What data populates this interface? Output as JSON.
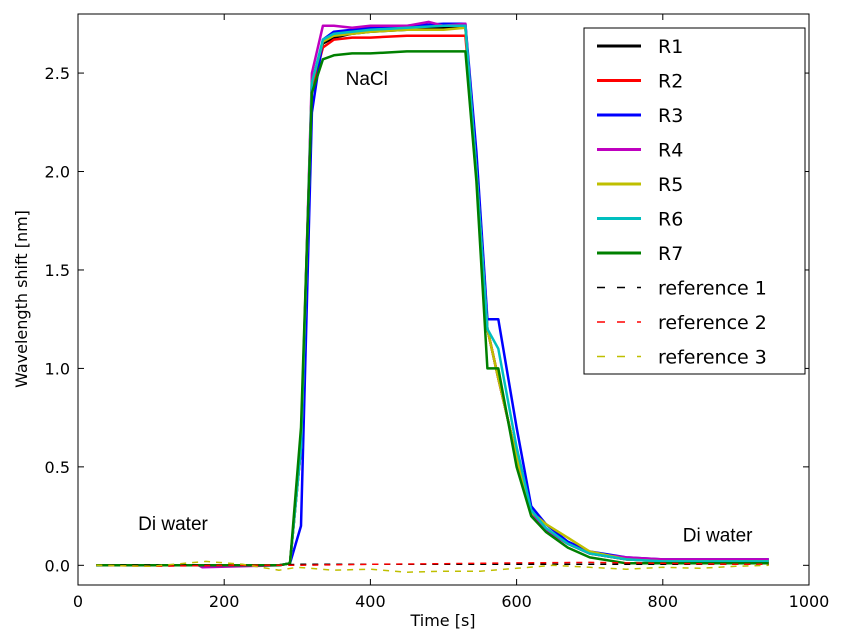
{
  "chart_data": {
    "type": "line",
    "xlabel": "Time [s]",
    "ylabel": "Wavelength shift [nm]",
    "xlim": [
      0,
      1000
    ],
    "ylim": [
      -0.1,
      2.8
    ],
    "xticks": [
      0,
      200,
      400,
      600,
      800,
      1000
    ],
    "xtick_labels": [
      "0",
      "200",
      "400",
      "600",
      "800",
      "1000"
    ],
    "yticks": [
      0.0,
      0.5,
      1.0,
      1.5,
      2.0,
      2.5
    ],
    "ytick_labels": [
      "0.0",
      "0.5",
      "1.0",
      "1.5",
      "2.0",
      "2.5"
    ],
    "grid": false,
    "legend_position": "top-right",
    "annotations": [
      {
        "text": "NaCl",
        "x": 395,
        "y": 2.44
      },
      {
        "text": "Di water",
        "x": 130,
        "y": 0.18
      },
      {
        "text": "Di water",
        "x": 875,
        "y": 0.12
      }
    ],
    "series": [
      {
        "name": "R1",
        "color": "#000000",
        "style": "solid",
        "x": [
          25,
          275,
          290,
          305,
          320,
          335,
          350,
          375,
          400,
          450,
          500,
          530,
          545,
          560,
          575,
          600,
          620,
          640,
          670,
          700,
          750,
          800,
          850,
          900,
          945
        ],
        "y": [
          0,
          0,
          0.01,
          0.6,
          2.45,
          2.65,
          2.68,
          2.7,
          2.71,
          2.72,
          2.73,
          2.73,
          2.0,
          1.2,
          0.95,
          0.55,
          0.27,
          0.18,
          0.11,
          0.06,
          0.03,
          0.02,
          0.02,
          0.02,
          0.02
        ]
      },
      {
        "name": "R2",
        "color": "#ff0000",
        "style": "solid",
        "x": [
          25,
          275,
          290,
          305,
          320,
          335,
          350,
          375,
          400,
          450,
          500,
          530,
          545,
          560,
          575,
          600,
          620,
          640,
          670,
          700,
          750,
          800,
          850,
          900,
          945
        ],
        "y": [
          0,
          0,
          0.01,
          0.6,
          2.42,
          2.63,
          2.67,
          2.68,
          2.68,
          2.69,
          2.69,
          2.69,
          2.0,
          1.2,
          0.95,
          0.55,
          0.27,
          0.18,
          0.11,
          0.06,
          0.03,
          0.02,
          0.02,
          0.02,
          0.02
        ]
      },
      {
        "name": "R3",
        "color": "#0000ff",
        "style": "solid",
        "x": [
          25,
          275,
          290,
          305,
          320,
          335,
          350,
          375,
          400,
          450,
          500,
          530,
          545,
          560,
          575,
          600,
          620,
          640,
          670,
          700,
          750,
          800,
          850,
          900,
          945
        ],
        "y": [
          0,
          0,
          0.01,
          0.2,
          2.3,
          2.67,
          2.71,
          2.72,
          2.73,
          2.74,
          2.75,
          2.75,
          2.1,
          1.25,
          1.25,
          0.7,
          0.3,
          0.21,
          0.12,
          0.07,
          0.04,
          0.03,
          0.03,
          0.03,
          0.03
        ]
      },
      {
        "name": "R4",
        "color": "#bf00bf",
        "style": "solid",
        "x": [
          25,
          165,
          170,
          275,
          290,
          305,
          320,
          335,
          350,
          375,
          400,
          450,
          480,
          500,
          530,
          545,
          560,
          575,
          600,
          620,
          640,
          670,
          700,
          750,
          800,
          850,
          900,
          945
        ],
        "y": [
          0,
          0,
          -0.01,
          0,
          0.01,
          0.6,
          2.5,
          2.74,
          2.74,
          2.73,
          2.74,
          2.74,
          2.76,
          2.74,
          2.75,
          2.0,
          1.2,
          0.95,
          0.55,
          0.27,
          0.18,
          0.11,
          0.06,
          0.04,
          0.03,
          0.03,
          0.03,
          0.03
        ]
      },
      {
        "name": "R5",
        "color": "#bfbf00",
        "style": "solid",
        "x": [
          25,
          275,
          290,
          305,
          320,
          335,
          350,
          375,
          400,
          450,
          500,
          530,
          545,
          560,
          575,
          600,
          620,
          640,
          670,
          700,
          750,
          800,
          850,
          900,
          945
        ],
        "y": [
          0,
          0,
          0.01,
          0.6,
          2.45,
          2.66,
          2.69,
          2.7,
          2.71,
          2.72,
          2.72,
          2.73,
          2.0,
          1.2,
          0.95,
          0.55,
          0.27,
          0.21,
          0.14,
          0.07,
          0.03,
          0.02,
          0.02,
          0.02,
          0.02
        ]
      },
      {
        "name": "R6",
        "color": "#00bfbf",
        "style": "solid",
        "x": [
          25,
          275,
          290,
          305,
          320,
          335,
          350,
          375,
          400,
          450,
          500,
          530,
          545,
          560,
          575,
          600,
          620,
          640,
          670,
          700,
          750,
          800,
          850,
          900,
          945
        ],
        "y": [
          0,
          0,
          0.01,
          0.6,
          2.45,
          2.67,
          2.7,
          2.71,
          2.72,
          2.73,
          2.74,
          2.74,
          2.0,
          1.2,
          1.1,
          0.6,
          0.28,
          0.19,
          0.11,
          0.06,
          0.03,
          0.02,
          0.02,
          0.02,
          0.02
        ]
      },
      {
        "name": "R7",
        "color": "#008000",
        "style": "solid",
        "x": [
          25,
          275,
          290,
          305,
          320,
          335,
          350,
          375,
          400,
          450,
          500,
          530,
          545,
          560,
          575,
          600,
          620,
          640,
          670,
          700,
          750,
          800,
          850,
          900,
          945
        ],
        "y": [
          0,
          0,
          0.01,
          0.7,
          2.4,
          2.57,
          2.59,
          2.6,
          2.6,
          2.61,
          2.61,
          2.61,
          1.95,
          1.0,
          1.0,
          0.5,
          0.25,
          0.17,
          0.09,
          0.04,
          0.01,
          0.01,
          0.01,
          0.01,
          0.01
        ]
      },
      {
        "name": "reference 1",
        "color": "#000000",
        "style": "dashed",
        "x": [
          25,
          100,
          200,
          275,
          300,
          400,
          500,
          600,
          700,
          800,
          900,
          945
        ],
        "y": [
          0,
          0,
          0,
          0,
          0.005,
          0.005,
          0.005,
          0.005,
          0.005,
          0.005,
          0.005,
          0.005
        ]
      },
      {
        "name": "reference 2",
        "color": "#ff0000",
        "style": "dashed",
        "x": [
          25,
          100,
          200,
          275,
          300,
          400,
          500,
          600,
          700,
          800,
          900,
          945
        ],
        "y": [
          0,
          -0.005,
          0,
          0,
          0,
          0.005,
          0.008,
          0.012,
          0.015,
          0.01,
          0.005,
          0.005
        ]
      },
      {
        "name": "reference 3",
        "color": "#bfbf00",
        "style": "dashed",
        "x": [
          25,
          100,
          175,
          225,
          275,
          300,
          350,
          400,
          450,
          500,
          550,
          600,
          650,
          700,
          750,
          800,
          850,
          900,
          945
        ],
        "y": [
          0,
          -0.005,
          0.02,
          0.005,
          -0.025,
          -0.01,
          -0.025,
          -0.02,
          -0.035,
          -0.03,
          -0.03,
          -0.015,
          0,
          -0.01,
          -0.02,
          -0.01,
          -0.015,
          -0.005,
          0
        ]
      }
    ]
  }
}
